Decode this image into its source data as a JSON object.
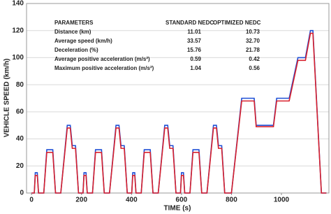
{
  "chart_data": {
    "type": "line",
    "xlabel": "TIME (s)",
    "ylabel": "VEHICLE SPEED (km/h)",
    "x": [
      0,
      11,
      15,
      23,
      28,
      49,
      61,
      85,
      96,
      117,
      143,
      155,
      163,
      176,
      188,
      195,
      206,
      210,
      218,
      223,
      244,
      256,
      280,
      291,
      312,
      338,
      350,
      358,
      371,
      383,
      390,
      401,
      405,
      413,
      418,
      439,
      451,
      475,
      486,
      507,
      533,
      545,
      553,
      566,
      578,
      585,
      596,
      600,
      608,
      613,
      634,
      646,
      670,
      681,
      702,
      728,
      740,
      748,
      761,
      773,
      780,
      800,
      841,
      891,
      899,
      968,
      981,
      1031,
      1066,
      1096,
      1116,
      1126,
      1160,
      1180
    ],
    "series": [
      {
        "color": "#1f4fd6",
        "values": [
          0,
          0,
          15,
          15,
          0,
          0,
          32,
          32,
          0,
          0,
          50,
          50,
          35,
          35,
          0,
          0,
          0,
          15,
          15,
          0,
          0,
          32,
          32,
          0,
          0,
          50,
          50,
          35,
          35,
          0,
          0,
          0,
          15,
          15,
          0,
          0,
          32,
          32,
          0,
          0,
          50,
          50,
          35,
          35,
          0,
          0,
          0,
          15,
          15,
          0,
          0,
          32,
          32,
          0,
          0,
          50,
          50,
          35,
          35,
          0,
          0,
          0,
          70,
          70,
          50,
          50,
          70,
          70,
          100,
          100,
          120,
          120,
          0,
          0
        ]
      },
      {
        "color": "#d8202c",
        "values": [
          0,
          0,
          13,
          13,
          0,
          0,
          30,
          30,
          0,
          0,
          48,
          48,
          33,
          33,
          0,
          0,
          0,
          13,
          13,
          0,
          0,
          30,
          30,
          0,
          0,
          48,
          48,
          33,
          33,
          0,
          0,
          0,
          13,
          13,
          0,
          0,
          30,
          30,
          0,
          0,
          48,
          48,
          33,
          33,
          0,
          0,
          0,
          13,
          13,
          0,
          0,
          30,
          30,
          0,
          0,
          48,
          48,
          33,
          33,
          0,
          0,
          0,
          68,
          68,
          49,
          49,
          68,
          68,
          98,
          98,
          118,
          118,
          0,
          0
        ]
      }
    ],
    "xlim": [
      -20,
      1190
    ],
    "xticks": [
      0,
      200,
      400,
      600,
      800,
      1000
    ],
    "ylim": [
      0,
      140
    ],
    "yticks": [
      0,
      20,
      40,
      60,
      80,
      100,
      120,
      140
    ],
    "grid": true,
    "table": {
      "header": [
        "PARAMETERS",
        "STANDARD NEDC",
        "OPTIMIZED NEDC"
      ],
      "rows": [
        [
          "Distance (km)",
          "11.01",
          "10.73"
        ],
        [
          "Average speed (km/h)",
          "33.57",
          "32.70"
        ],
        [
          "Deceleration (%)",
          "15.76",
          "21.78"
        ],
        [
          "Average positive acceleration (m/s²)",
          "0.59",
          "0.42"
        ],
        [
          "Maximum positive acceleration (m/s²)",
          "1.04",
          "0.56"
        ]
      ]
    }
  }
}
